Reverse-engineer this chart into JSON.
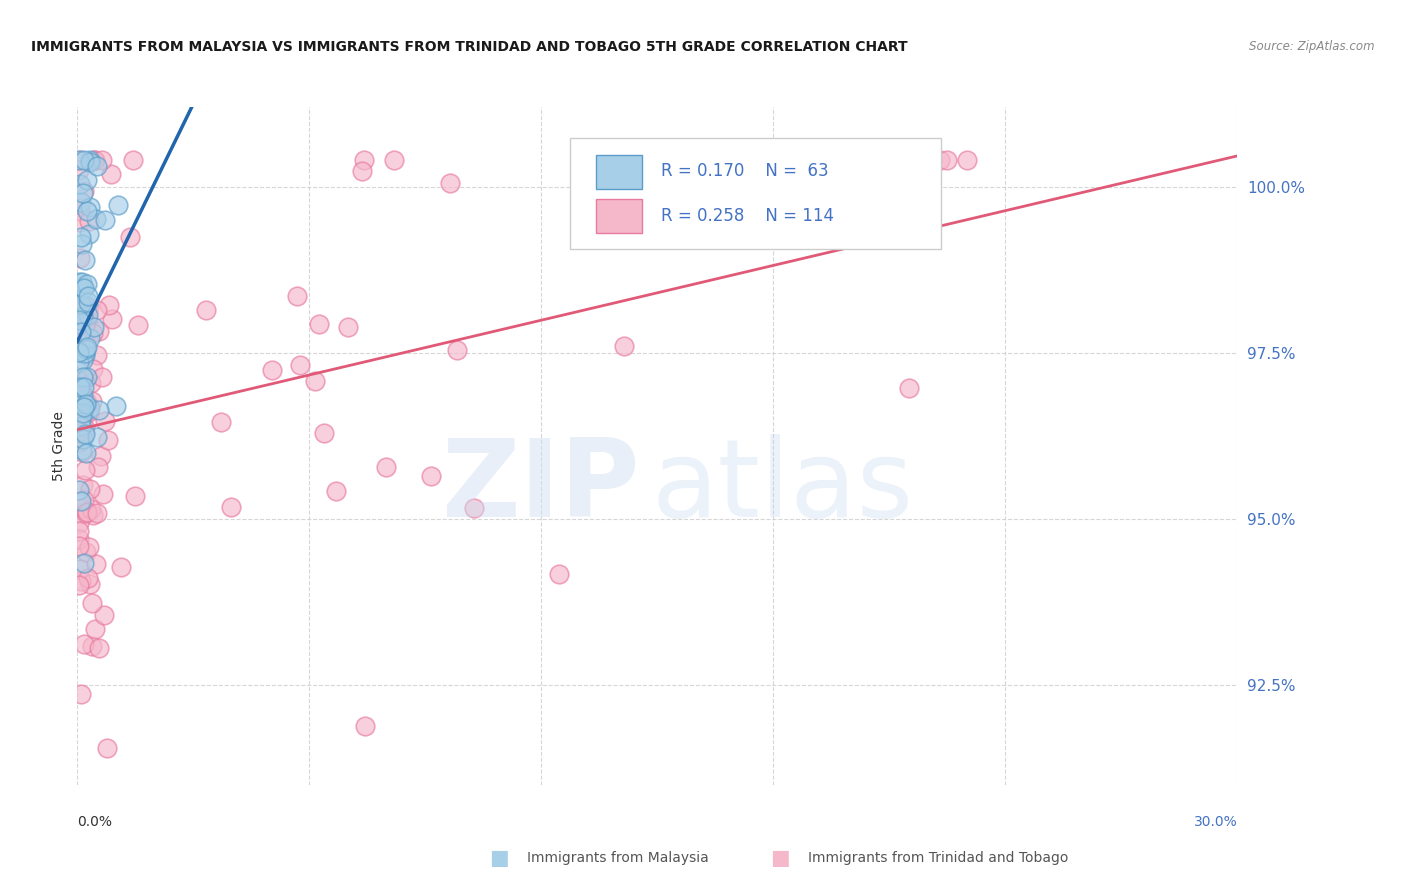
{
  "title": "IMMIGRANTS FROM MALAYSIA VS IMMIGRANTS FROM TRINIDAD AND TOBAGO 5TH GRADE CORRELATION CHART",
  "source": "Source: ZipAtlas.com",
  "ylabel": "5th Grade",
  "y_ticks": [
    92.5,
    95.0,
    97.5,
    100.0
  ],
  "y_tick_labels": [
    "92.5%",
    "95.0%",
    "97.5%",
    "100.0%"
  ],
  "xlim": [
    0.0,
    30.0
  ],
  "ylim": [
    91.0,
    101.2
  ],
  "legend_malaysia_R": "0.170",
  "legend_malaysia_N": "63",
  "legend_tobago_R": "0.258",
  "legend_tobago_N": "114",
  "malaysia_fill_color": "#a8cfe8",
  "malaysia_edge_color": "#5b9dc8",
  "tobago_fill_color": "#f5b8cb",
  "tobago_edge_color": "#e87aa0",
  "trend_malaysia_color": "#2166ac",
  "trend_tobago_color": "#e05a78",
  "grid_color": "#cccccc",
  "title_color": "#1a1a1a",
  "source_color": "#888888",
  "tick_color": "#4472c4",
  "label_color": "#333333",
  "bottom_legend_color": "#555555",
  "marker_size": 180,
  "marker_alpha": 0.65,
  "trend_lw_malaysia": 2.5,
  "trend_lw_tobago": 2.0
}
